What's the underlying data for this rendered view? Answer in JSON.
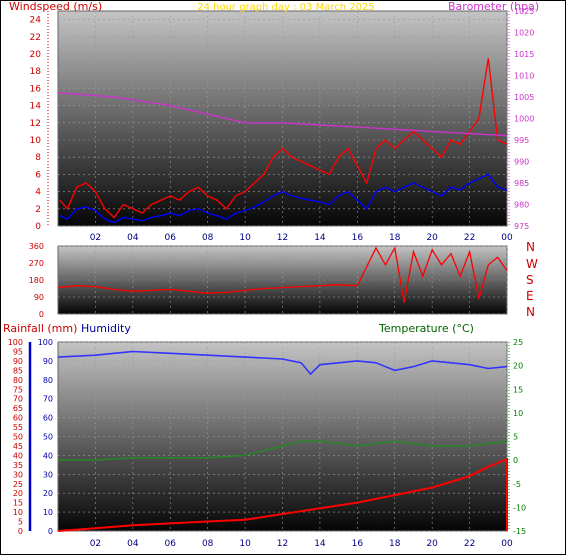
{
  "header": {
    "windspeed_label": "Windspeed (m/s)",
    "title": "24 hour graph day : 03 March 2025",
    "barometer_label": "Barometer (hpa)"
  },
  "compass": {
    "labels": [
      "N",
      "W",
      "S",
      "E",
      "N"
    ]
  },
  "lower_header": {
    "rainfall_label": "Rainfall (mm)",
    "humidity_label": "Humidity",
    "temperature_label": "Temperature (°C)"
  },
  "colors": {
    "wind_gust": "#ff0000",
    "wind_avg": "#0000ff",
    "barometer": "#cc33cc",
    "direction": "#ff0000",
    "humidity": "#3333ff",
    "temperature": "#228b22",
    "rainfall": "#ff0000",
    "title": "#ffd700",
    "rain_axis": "#cc0000",
    "humidity_axis": "#0000aa",
    "temperature_axis": "#008000"
  },
  "chart_data": [
    {
      "type": "line",
      "title": "24 hour graph day : 03 March 2025",
      "xticks": [
        "02",
        "04",
        "06",
        "08",
        "10",
        "12",
        "14",
        "16",
        "18",
        "20",
        "22",
        "00"
      ],
      "ylabel": "Windspeed (m/s)",
      "ylim": [
        0,
        25
      ],
      "yticks": [
        0,
        2,
        4,
        6,
        8,
        10,
        12,
        14,
        16,
        18,
        20,
        22,
        24
      ],
      "y2label": "Barometer (hpa)",
      "y2lim": [
        975,
        1025
      ],
      "y2ticks": [
        975,
        980,
        985,
        990,
        995,
        1000,
        1005,
        1010,
        1015,
        1020,
        1025
      ],
      "series": [
        {
          "role": "wind_gust",
          "axis": "left",
          "x": [
            0.1,
            0.5,
            1,
            1.5,
            2,
            2.5,
            3,
            3.5,
            4,
            4.5,
            5,
            5.5,
            6,
            6.5,
            7,
            7.5,
            8,
            8.5,
            9,
            9.5,
            10,
            10.5,
            11,
            11.5,
            12,
            12.5,
            13,
            13.5,
            14,
            14.5,
            15,
            15.5,
            16,
            16.5,
            17,
            17.5,
            18,
            18.5,
            19,
            19.5,
            20,
            20.5,
            21,
            21.5,
            22,
            22.5,
            23,
            23.5,
            24
          ],
          "values": [
            3,
            2,
            4.5,
            5,
            4,
            2,
            1,
            2.5,
            2,
            1.5,
            2.5,
            3,
            3.5,
            3,
            4,
            4.5,
            3.5,
            3,
            2,
            3.5,
            4,
            5,
            6,
            8,
            9,
            8,
            7.5,
            7,
            6.5,
            6,
            8,
            9,
            7,
            5,
            9,
            10,
            9,
            10,
            11,
            10,
            9,
            8,
            10,
            9.5,
            11,
            12.5,
            19.5,
            10,
            9.5
          ]
        },
        {
          "role": "wind_avg",
          "axis": "left",
          "x": [
            0.1,
            0.5,
            1,
            1.5,
            2,
            2.5,
            3,
            3.5,
            4,
            4.5,
            5,
            5.5,
            6,
            6.5,
            7,
            7.5,
            8,
            8.5,
            9,
            9.5,
            10,
            10.5,
            11,
            11.5,
            12,
            12.5,
            13,
            13.5,
            14,
            14.5,
            15,
            15.5,
            16,
            16.5,
            17,
            17.5,
            18,
            18.5,
            19,
            19.5,
            20,
            20.5,
            21,
            21.5,
            22,
            22.5,
            23,
            23.5,
            24
          ],
          "values": [
            1.2,
            0.8,
            2,
            2.2,
            1.8,
            0.8,
            0.4,
            1,
            0.8,
            0.6,
            1,
            1.2,
            1.5,
            1.2,
            1.8,
            2,
            1.5,
            1.2,
            0.8,
            1.5,
            1.8,
            2.2,
            2.8,
            3.5,
            4,
            3.5,
            3.2,
            3,
            2.8,
            2.5,
            3.5,
            4,
            3,
            2,
            4,
            4.5,
            4,
            4.5,
            5,
            4.5,
            4,
            3.5,
            4.5,
            4.2,
            5,
            5.5,
            6,
            4.5,
            4.2
          ]
        },
        {
          "role": "barometer",
          "axis": "right",
          "x": [
            0,
            3,
            6,
            8,
            10,
            12,
            14,
            16,
            18,
            20,
            22,
            24
          ],
          "values": [
            1006,
            1005,
            1003,
            1001,
            999,
            999,
            998.5,
            998,
            997.5,
            997,
            996.5,
            996
          ]
        }
      ]
    },
    {
      "type": "line",
      "ylabel": "",
      "ylim": [
        0,
        360
      ],
      "yticks": [
        0,
        90,
        180,
        270,
        360
      ],
      "series": [
        {
          "role": "wind_direction",
          "x": [
            0,
            1,
            2,
            3,
            4,
            5,
            6,
            7,
            8,
            9,
            10,
            11,
            12,
            13,
            14,
            15,
            16,
            17,
            17.5,
            18,
            18.5,
            19,
            19.5,
            20,
            20.5,
            21,
            21.5,
            22,
            22.5,
            23,
            23.5,
            24
          ],
          "values": [
            140,
            150,
            145,
            130,
            120,
            125,
            130,
            120,
            110,
            115,
            125,
            135,
            140,
            145,
            150,
            155,
            150,
            350,
            260,
            350,
            60,
            330,
            200,
            340,
            260,
            320,
            200,
            330,
            80,
            260,
            300,
            230
          ]
        }
      ]
    },
    {
      "type": "line",
      "ylabel": "Rainfall (mm)",
      "ylim": [
        0,
        100
      ],
      "yticks": [
        0,
        5,
        10,
        15,
        20,
        25,
        30,
        35,
        40,
        45,
        50,
        55,
        60,
        65,
        70,
        75,
        80,
        85,
        90,
        95,
        100
      ],
      "y2label": "Humidity",
      "y2lim": [
        0,
        100
      ],
      "y2ticks": [
        0,
        10,
        20,
        30,
        40,
        50,
        60,
        70,
        80,
        90,
        100
      ],
      "y3label": "Temperature (°C)",
      "y3lim": [
        -15,
        25
      ],
      "y3ticks": [
        -15,
        -10,
        -5,
        0,
        5,
        10,
        15,
        20,
        25
      ],
      "series": [
        {
          "role": "humidity",
          "axis": "humidity",
          "x": [
            0,
            2,
            4,
            6,
            8,
            10,
            12,
            13,
            13.5,
            14,
            16,
            17,
            18,
            19,
            20,
            22,
            23,
            24
          ],
          "values": [
            92,
            93,
            95,
            94,
            93,
            92,
            91,
            89,
            83,
            88,
            90,
            89,
            85,
            87,
            90,
            88,
            86,
            87
          ]
        },
        {
          "role": "temperature",
          "axis": "temperature",
          "x": [
            0,
            2,
            4,
            6,
            8,
            10,
            11,
            12,
            13,
            14,
            16,
            18,
            20,
            22,
            24
          ],
          "values": [
            0,
            0,
            0.5,
            0.5,
            0.5,
            1,
            2,
            3,
            4,
            4,
            3,
            4,
            3,
            3,
            4
          ]
        },
        {
          "role": "rainfall",
          "axis": "rain",
          "x": [
            0,
            2,
            4,
            6,
            8,
            10,
            12,
            14,
            16,
            18,
            20,
            22,
            23,
            24,
            24.001
          ],
          "values": [
            0,
            1.5,
            3,
            4,
            5,
            6,
            9,
            12,
            15,
            19,
            23,
            29,
            34,
            38,
            0
          ]
        }
      ]
    }
  ]
}
